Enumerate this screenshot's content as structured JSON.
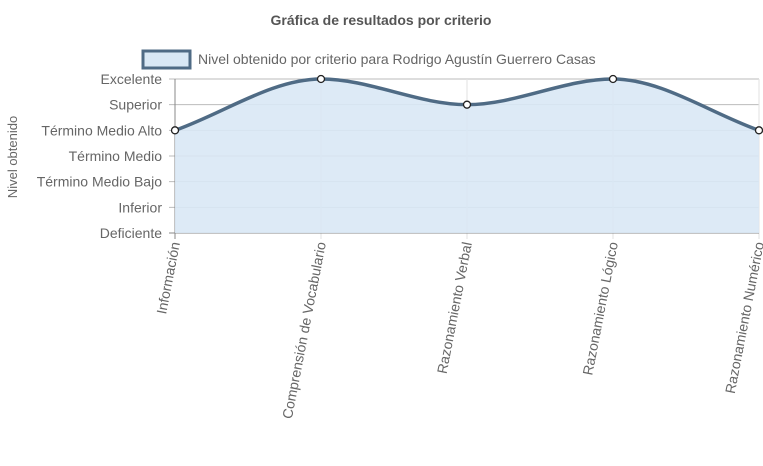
{
  "chart_data": {
    "type": "area",
    "title": "Gráfica de resultados por criterio",
    "ylabel": "Nivel obtenido",
    "xlabel": "",
    "levels": [
      "Deficiente",
      "Inferior",
      "Término Medio Bajo",
      "Término Medio",
      "Término Medio Alto",
      "Superior",
      "Excelente"
    ],
    "categories": [
      "Información",
      "Comprensión de Vocabulario",
      "Razonamiento Verbal",
      "Razonamiento Lógico",
      "Razonamiento Numérico"
    ],
    "series": [
      {
        "name": "Nivel obtenido por criterio para Rodrigo Agustín Guerrero Casas",
        "values": [
          "Término Medio Alto",
          "Excelente",
          "Superior",
          "Excelente",
          "Término Medio Alto"
        ]
      }
    ],
    "grid": true,
    "legend_position": "top",
    "colors": {
      "line": "#4f6b85",
      "fill": "#d9e8f5",
      "grid": "#bbbbbb",
      "axis": "#888888"
    }
  }
}
